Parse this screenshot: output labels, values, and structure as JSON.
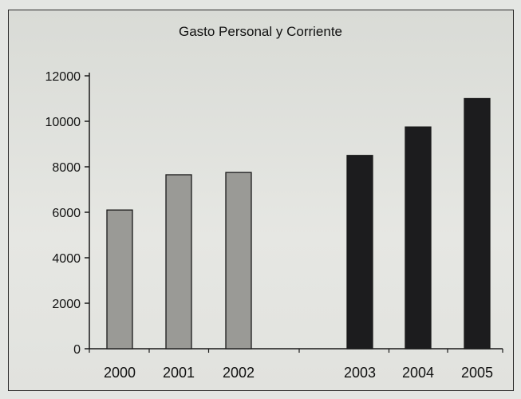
{
  "chart_data": {
    "type": "bar",
    "title": "Gasto Personal y Corriente",
    "categories": [
      "2000",
      "2001",
      "2002",
      "2003",
      "2004",
      "2005"
    ],
    "values": [
      6100,
      7650,
      7750,
      8500,
      9750,
      11000
    ],
    "ylim": [
      0,
      12000
    ],
    "yticks": [
      "0",
      "2000",
      "4000",
      "6000",
      "8000",
      "10000",
      "12000"
    ],
    "xlabel": "",
    "ylabel": "",
    "grid": false,
    "legend": "none",
    "colors": {
      "group_a": "#9a9a96",
      "group_b": "#1c1c1e",
      "border": "#1a1a1a"
    }
  }
}
